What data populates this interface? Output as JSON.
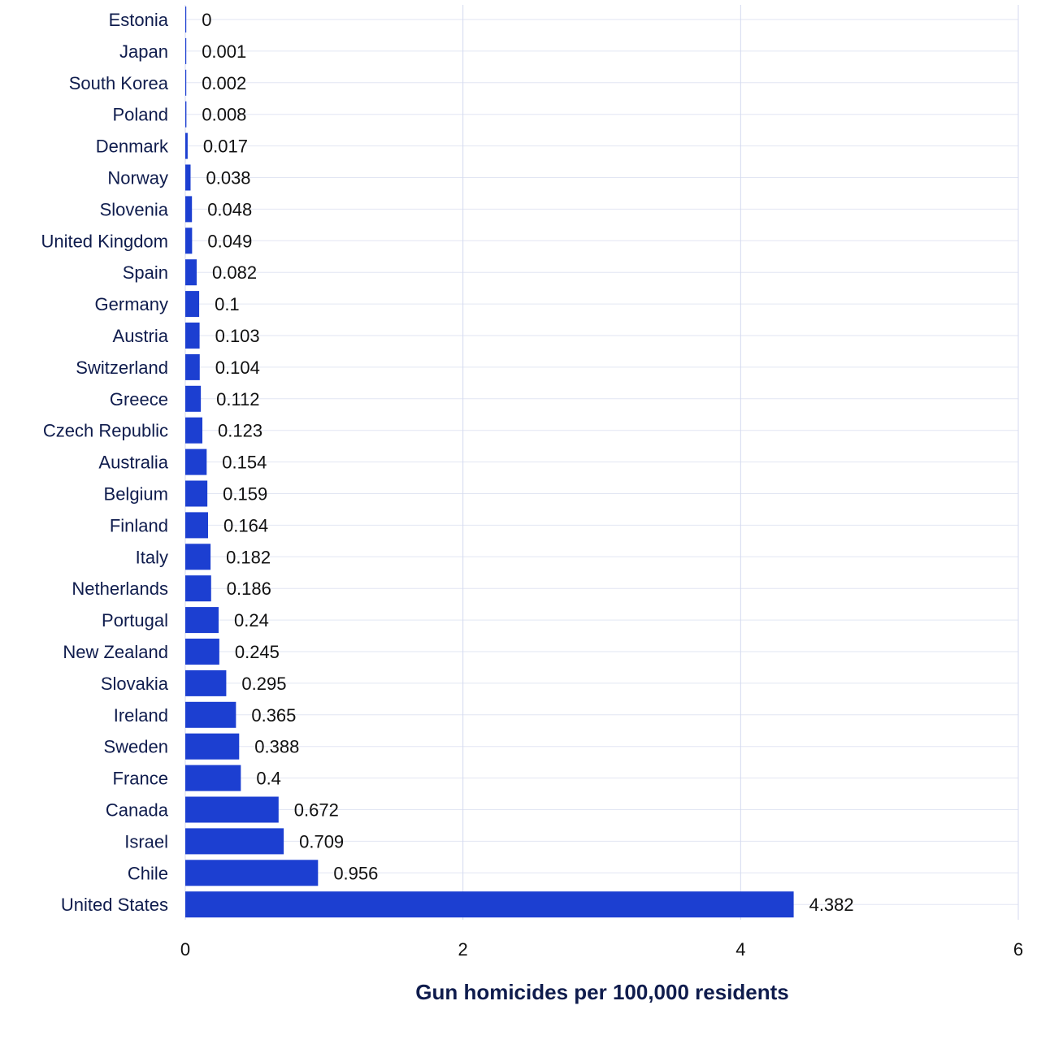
{
  "chart_data": {
    "type": "bar",
    "orientation": "horizontal",
    "categories": [
      "Estonia",
      "Japan",
      "South Korea",
      "Poland",
      "Denmark",
      "Norway",
      "Slovenia",
      "United Kingdom",
      "Spain",
      "Germany",
      "Austria",
      "Switzerland",
      "Greece",
      "Czech Republic",
      "Australia",
      "Belgium",
      "Finland",
      "Italy",
      "Netherlands",
      "Portugal",
      "New Zealand",
      "Slovakia",
      "Ireland",
      "Sweden",
      "France",
      "Canada",
      "Israel",
      "Chile",
      "United States"
    ],
    "values": [
      0,
      0.001,
      0.002,
      0.008,
      0.017,
      0.038,
      0.048,
      0.049,
      0.082,
      0.1,
      0.103,
      0.104,
      0.112,
      0.123,
      0.154,
      0.159,
      0.164,
      0.182,
      0.186,
      0.24,
      0.245,
      0.295,
      0.365,
      0.388,
      0.4,
      0.672,
      0.709,
      0.956,
      4.382
    ],
    "value_labels": [
      "0",
      "0.001",
      "0.002",
      "0.008",
      "0.017",
      "0.038",
      "0.048",
      "0.049",
      "0.082",
      "0.1",
      "0.103",
      "0.104",
      "0.112",
      "0.123",
      "0.154",
      "0.159",
      "0.164",
      "0.182",
      "0.186",
      "0.24",
      "0.245",
      "0.295",
      "0.365",
      "0.388",
      "0.4",
      "0.672",
      "0.709",
      "0.956",
      "4.382"
    ],
    "title": "",
    "xlabel": "Gun homicides per 100,000 residents",
    "ylabel": "",
    "xlim": [
      0,
      6
    ],
    "xticks": [
      0,
      2,
      4,
      6
    ],
    "grid": true,
    "legend": "none",
    "colors": {
      "bar": "#1c3fd1",
      "grid": "#dde2f2",
      "category_text": "#0f1c4d",
      "value_text": "#111111",
      "axis_title": "#0f1c4d"
    }
  }
}
